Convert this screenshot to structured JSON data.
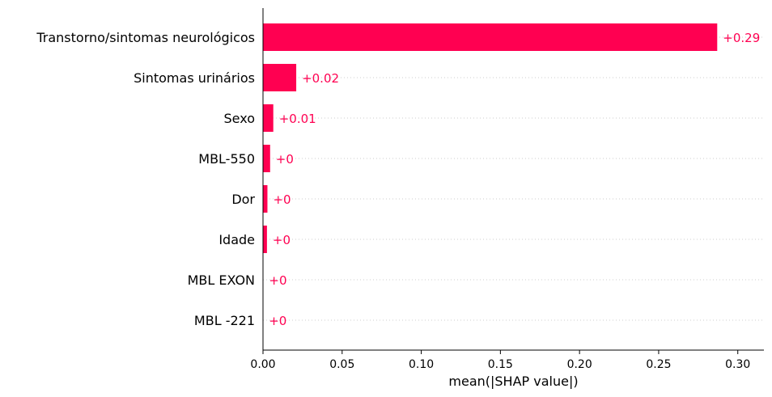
{
  "chart_data": {
    "type": "bar",
    "orientation": "horizontal",
    "categories": [
      "Transtorno/sintomas neurológicos",
      "Sintomas urinários",
      "Sexo",
      "MBL-550",
      "Dor",
      "Idade",
      "MBL EXON",
      "MBL -221"
    ],
    "values": [
      0.287,
      0.021,
      0.0065,
      0.0045,
      0.0028,
      0.0025,
      0.0002,
      0.0001
    ],
    "value_labels": [
      "+0.29",
      "+0.02",
      "+0.01",
      "+0",
      "+0",
      "+0",
      "+0",
      "+0"
    ],
    "xlabel": "mean(|SHAP value|)",
    "xlim": [
      0,
      0.3165
    ],
    "xticks": [
      0,
      0.05,
      0.1,
      0.15,
      0.2,
      0.25,
      0.3
    ],
    "xtick_labels": [
      "0.00",
      "0.05",
      "0.10",
      "0.15",
      "0.20",
      "0.25",
      "0.30"
    ],
    "grid": "dotted horizontal row lines",
    "colors": {
      "bar": "#ff0051",
      "value_label": "#ff0051",
      "grid": "#cccccc",
      "axis": "#000000"
    }
  }
}
